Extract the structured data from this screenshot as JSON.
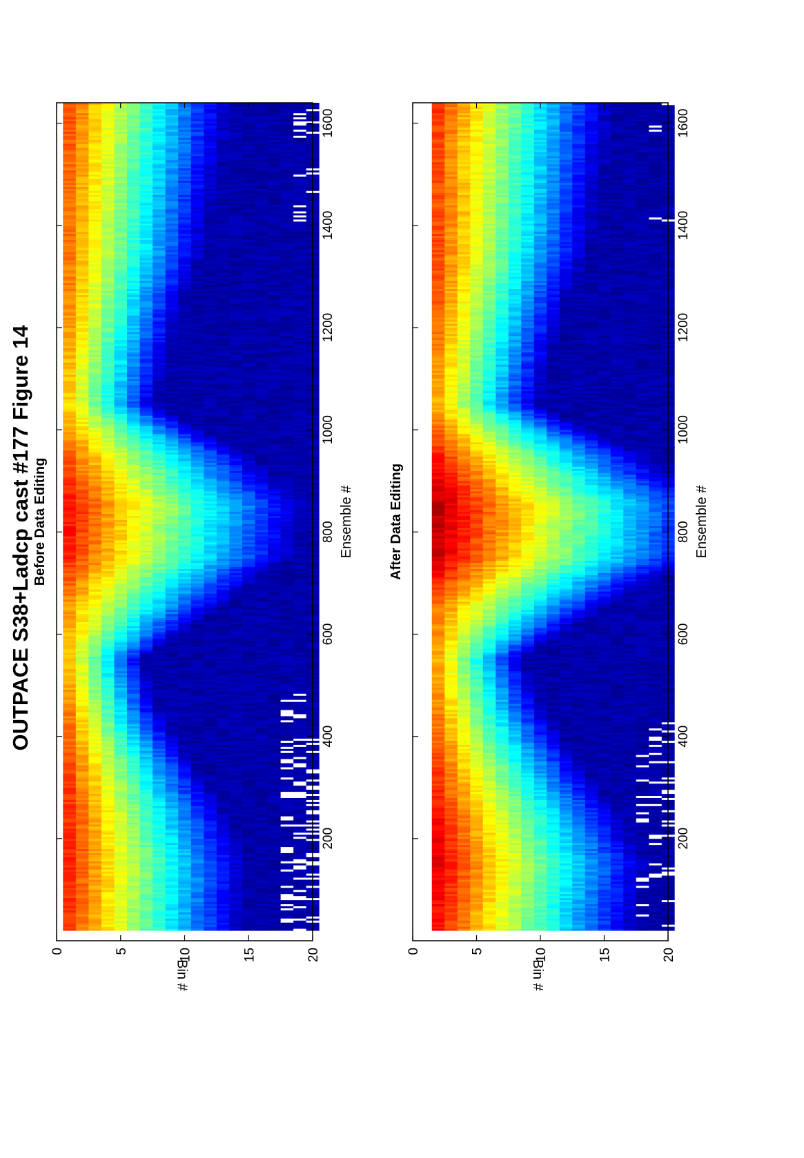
{
  "title": "OUTPACE S38+Ladcp cast #177  Figure 14",
  "colormap": [
    "#00008f",
    "#0000ff",
    "#0080ff",
    "#00ffff",
    "#80ff80",
    "#ffff00",
    "#ff8000",
    "#ff0000",
    "#800000"
  ],
  "missing_color": "#ffffff",
  "chart_data": [
    {
      "type": "heatmap",
      "title": "Before Data Editing",
      "xlabel": "Ensemble #",
      "ylabel": "Bin #",
      "xlim": [
        0,
        1640
      ],
      "ylim": [
        0,
        20
      ],
      "xticks": [
        200,
        400,
        600,
        800,
        1000,
        1200,
        1400,
        1600
      ],
      "yticks": [
        0,
        5,
        10,
        15,
        20
      ],
      "bins": [
        1,
        20
      ],
      "ensembles": [
        20,
        1640
      ],
      "intensity_note_ensemble": [
        50,
        150,
        250,
        350,
        450,
        550,
        650,
        750,
        850,
        950,
        1050,
        1150,
        1250,
        1350,
        1450,
        1550,
        1630
      ],
      "surface_bin_level_by_ensemble": [
        0.82,
        0.84,
        0.83,
        0.8,
        0.74,
        0.68,
        0.72,
        0.84,
        0.86,
        0.78,
        0.66,
        0.7,
        0.74,
        0.76,
        0.76,
        0.78,
        0.8
      ],
      "decay_depth_bins_by_ensemble": [
        9.5,
        9.5,
        8.5,
        7.0,
        5.5,
        5.0,
        9.5,
        12.0,
        12.5,
        10.5,
        6.0,
        6.5,
        7.0,
        8.0,
        8.5,
        9.0,
        9.0
      ],
      "gap_fraction_by_bin_range": [
        {
          "bins": [
            18,
            20
          ],
          "ensembles": [
            20,
            480
          ],
          "fraction": 0.45
        },
        {
          "bins": [
            19,
            20
          ],
          "ensembles": [
            1380,
            1640
          ],
          "fraction": 0.25
        }
      ]
    },
    {
      "type": "heatmap",
      "title": "After Data Editing",
      "xlabel": "Ensemble #",
      "ylabel": "Bin #",
      "xlim": [
        0,
        1640
      ],
      "ylim": [
        0,
        20
      ],
      "xticks": [
        200,
        400,
        600,
        800,
        1000,
        1200,
        1400,
        1600
      ],
      "yticks": [
        0,
        5,
        10,
        15,
        20
      ],
      "bins": [
        2,
        20
      ],
      "ensembles": [
        20,
        1640
      ],
      "intensity_note_ensemble": [
        50,
        150,
        250,
        350,
        450,
        550,
        650,
        750,
        850,
        950,
        1050,
        1150,
        1250,
        1350,
        1450,
        1550,
        1630
      ],
      "surface_bin_level_by_ensemble": [
        0.86,
        0.9,
        0.86,
        0.8,
        0.74,
        0.7,
        0.76,
        0.92,
        0.94,
        0.84,
        0.7,
        0.74,
        0.78,
        0.8,
        0.8,
        0.8,
        0.82
      ],
      "decay_depth_bins_by_ensemble": [
        10.5,
        10.5,
        9.5,
        8.0,
        6.5,
        5.5,
        10.0,
        13.0,
        13.5,
        11.0,
        6.5,
        7.0,
        7.5,
        8.5,
        9.0,
        9.5,
        9.5
      ],
      "gap_fraction_by_bin_range": [
        {
          "bins": [
            18,
            20
          ],
          "ensembles": [
            20,
            430
          ],
          "fraction": 0.25
        },
        {
          "bins": [
            19,
            20
          ],
          "ensembles": [
            1380,
            1640
          ],
          "fraction": 0.05
        }
      ]
    }
  ]
}
